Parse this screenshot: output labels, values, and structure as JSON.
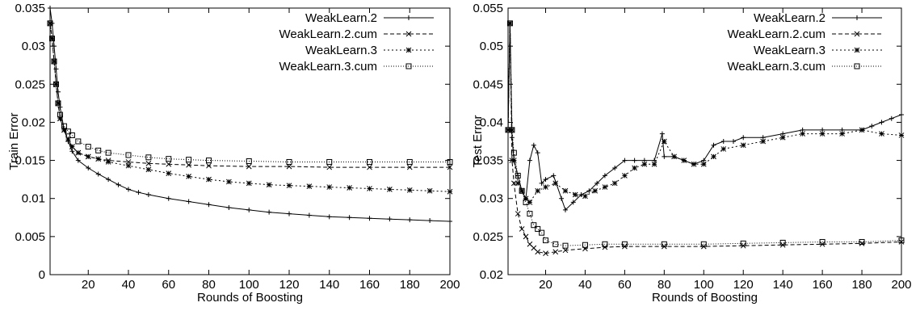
{
  "chart_data": [
    {
      "type": "line",
      "xlabel": "Rounds of Boosting",
      "ylabel": "Train Error",
      "xlim": [
        1,
        200
      ],
      "ylim": [
        0,
        0.035
      ],
      "xticks": [
        20,
        40,
        60,
        80,
        100,
        120,
        140,
        160,
        180,
        200
      ],
      "yticks": [
        0,
        0.005,
        0.01,
        0.015,
        0.02,
        0.025,
        0.03,
        0.035
      ],
      "ytick_labels": [
        "0",
        "0.005",
        "0.01",
        "0.015",
        "0.02",
        "0.025",
        "0.03",
        "0.035"
      ],
      "legend_position": "top-right",
      "series": [
        {
          "name": "WeakLearn.2",
          "marker": "plus",
          "dash": "",
          "points": [
            [
              1,
              0.035
            ],
            [
              2,
              0.033
            ],
            [
              3,
              0.03
            ],
            [
              4,
              0.027
            ],
            [
              5,
              0.024
            ],
            [
              6,
              0.022
            ],
            [
              8,
              0.019
            ],
            [
              10,
              0.0175
            ],
            [
              12,
              0.0162
            ],
            [
              15,
              0.015
            ],
            [
              20,
              0.014
            ],
            [
              25,
              0.0132
            ],
            [
              30,
              0.0125
            ],
            [
              35,
              0.0118
            ],
            [
              40,
              0.0112
            ],
            [
              45,
              0.0108
            ],
            [
              50,
              0.0105
            ],
            [
              60,
              0.01
            ],
            [
              70,
              0.0096
            ],
            [
              80,
              0.0092
            ],
            [
              90,
              0.0088
            ],
            [
              100,
              0.0085
            ],
            [
              110,
              0.0082
            ],
            [
              120,
              0.008
            ],
            [
              130,
              0.0078
            ],
            [
              140,
              0.0076
            ],
            [
              150,
              0.0075
            ],
            [
              160,
              0.0074
            ],
            [
              170,
              0.0073
            ],
            [
              180,
              0.0072
            ],
            [
              190,
              0.0071
            ],
            [
              200,
              0.007
            ]
          ]
        },
        {
          "name": "WeakLearn.2.cum",
          "marker": "cross",
          "dash": "5,3",
          "points": [
            [
              1,
              0.033
            ],
            [
              2,
              0.031
            ],
            [
              3,
              0.028
            ],
            [
              4,
              0.025
            ],
            [
              5,
              0.0225
            ],
            [
              6,
              0.0205
            ],
            [
              8,
              0.019
            ],
            [
              10,
              0.0178
            ],
            [
              12,
              0.0168
            ],
            [
              15,
              0.016
            ],
            [
              20,
              0.0155
            ],
            [
              25,
              0.0152
            ],
            [
              30,
              0.015
            ],
            [
              40,
              0.0148
            ],
            [
              50,
              0.0146
            ],
            [
              60,
              0.0145
            ],
            [
              70,
              0.0144
            ],
            [
              80,
              0.0143
            ],
            [
              100,
              0.0142
            ],
            [
              120,
              0.0142
            ],
            [
              140,
              0.0141
            ],
            [
              160,
              0.0141
            ],
            [
              180,
              0.0141
            ],
            [
              200,
              0.0141
            ]
          ]
        },
        {
          "name": "WeakLearn.3",
          "marker": "star",
          "dash": "2,3",
          "points": [
            [
              1,
              0.033
            ],
            [
              2,
              0.031
            ],
            [
              3,
              0.028
            ],
            [
              4,
              0.025
            ],
            [
              5,
              0.0225
            ],
            [
              6,
              0.0205
            ],
            [
              8,
              0.019
            ],
            [
              10,
              0.0178
            ],
            [
              12,
              0.0168
            ],
            [
              15,
              0.016
            ],
            [
              20,
              0.0155
            ],
            [
              25,
              0.0152
            ],
            [
              30,
              0.0148
            ],
            [
              40,
              0.0143
            ],
            [
              50,
              0.0138
            ],
            [
              60,
              0.0133
            ],
            [
              70,
              0.0129
            ],
            [
              80,
              0.0125
            ],
            [
              90,
              0.0122
            ],
            [
              100,
              0.012
            ],
            [
              110,
              0.0118
            ],
            [
              120,
              0.0117
            ],
            [
              130,
              0.0116
            ],
            [
              140,
              0.0115
            ],
            [
              150,
              0.0114
            ],
            [
              160,
              0.0113
            ],
            [
              170,
              0.0112
            ],
            [
              180,
              0.0111
            ],
            [
              190,
              0.011
            ],
            [
              200,
              0.0109
            ]
          ]
        },
        {
          "name": "WeakLearn.3.cum",
          "marker": "square",
          "dash": "1,2",
          "points": [
            [
              1,
              0.033
            ],
            [
              2,
              0.031
            ],
            [
              3,
              0.028
            ],
            [
              4,
              0.025
            ],
            [
              5,
              0.0225
            ],
            [
              6,
              0.021
            ],
            [
              8,
              0.0195
            ],
            [
              10,
              0.0188
            ],
            [
              12,
              0.0183
            ],
            [
              15,
              0.0175
            ],
            [
              20,
              0.0168
            ],
            [
              25,
              0.0163
            ],
            [
              30,
              0.016
            ],
            [
              40,
              0.0157
            ],
            [
              50,
              0.0154
            ],
            [
              60,
              0.0152
            ],
            [
              70,
              0.0151
            ],
            [
              80,
              0.015
            ],
            [
              100,
              0.0149
            ],
            [
              120,
              0.0148
            ],
            [
              140,
              0.0148
            ],
            [
              160,
              0.0148
            ],
            [
              180,
              0.0148
            ],
            [
              200,
              0.0148
            ]
          ]
        }
      ]
    },
    {
      "type": "line",
      "xlabel": "Rounds of Boosting",
      "ylabel": "Test Error",
      "xlim": [
        1,
        200
      ],
      "ylim": [
        0.02,
        0.055
      ],
      "xticks": [
        20,
        40,
        60,
        80,
        100,
        120,
        140,
        160,
        180,
        200
      ],
      "yticks": [
        0.02,
        0.025,
        0.03,
        0.035,
        0.04,
        0.045,
        0.05,
        0.055
      ],
      "ytick_labels": [
        "0.02",
        "0.025",
        "0.03",
        "0.035",
        "0.04",
        "0.045",
        "0.05",
        "0.055"
      ],
      "legend_position": "top-right",
      "series": [
        {
          "name": "WeakLearn.2",
          "marker": "plus",
          "dash": "",
          "points": [
            [
              1,
              0.039
            ],
            [
              2,
              0.053
            ],
            [
              3,
              0.038
            ],
            [
              4,
              0.035
            ],
            [
              6,
              0.033
            ],
            [
              8,
              0.031
            ],
            [
              10,
              0.03
            ],
            [
              12,
              0.035
            ],
            [
              14,
              0.037
            ],
            [
              16,
              0.036
            ],
            [
              18,
              0.032
            ],
            [
              20,
              0.0325
            ],
            [
              24,
              0.033
            ],
            [
              28,
              0.03
            ],
            [
              30,
              0.0285
            ],
            [
              34,
              0.0295
            ],
            [
              38,
              0.0305
            ],
            [
              42,
              0.031
            ],
            [
              46,
              0.032
            ],
            [
              50,
              0.033
            ],
            [
              55,
              0.034
            ],
            [
              60,
              0.035
            ],
            [
              65,
              0.035
            ],
            [
              70,
              0.035
            ],
            [
              75,
              0.035
            ],
            [
              79,
              0.0385
            ],
            [
              80,
              0.0355
            ],
            [
              85,
              0.0355
            ],
            [
              90,
              0.035
            ],
            [
              95,
              0.0345
            ],
            [
              100,
              0.035
            ],
            [
              105,
              0.037
            ],
            [
              110,
              0.0375
            ],
            [
              115,
              0.0375
            ],
            [
              120,
              0.038
            ],
            [
              130,
              0.038
            ],
            [
              140,
              0.0385
            ],
            [
              150,
              0.039
            ],
            [
              160,
              0.039
            ],
            [
              170,
              0.039
            ],
            [
              180,
              0.039
            ],
            [
              185,
              0.0395
            ],
            [
              190,
              0.04
            ],
            [
              195,
              0.0405
            ],
            [
              200,
              0.041
            ]
          ]
        },
        {
          "name": "WeakLearn.2.cum",
          "marker": "cross",
          "dash": "5,3",
          "points": [
            [
              1,
              0.039
            ],
            [
              2,
              0.053
            ],
            [
              3,
              0.035
            ],
            [
              4,
              0.032
            ],
            [
              6,
              0.028
            ],
            [
              8,
              0.026
            ],
            [
              10,
              0.025
            ],
            [
              12,
              0.024
            ],
            [
              14,
              0.0235
            ],
            [
              16,
              0.023
            ],
            [
              20,
              0.0228
            ],
            [
              25,
              0.023
            ],
            [
              30,
              0.0232
            ],
            [
              40,
              0.0234
            ],
            [
              50,
              0.0236
            ],
            [
              60,
              0.0237
            ],
            [
              80,
              0.0237
            ],
            [
              100,
              0.0237
            ],
            [
              120,
              0.0238
            ],
            [
              140,
              0.0239
            ],
            [
              160,
              0.024
            ],
            [
              180,
              0.0241
            ],
            [
              200,
              0.0243
            ]
          ]
        },
        {
          "name": "WeakLearn.3",
          "marker": "star",
          "dash": "2,3",
          "points": [
            [
              1,
              0.039
            ],
            [
              2,
              0.053
            ],
            [
              3,
              0.039
            ],
            [
              4,
              0.035
            ],
            [
              6,
              0.032
            ],
            [
              8,
              0.031
            ],
            [
              10,
              0.03
            ],
            [
              12,
              0.0295
            ],
            [
              16,
              0.031
            ],
            [
              20,
              0.0315
            ],
            [
              25,
              0.032
            ],
            [
              30,
              0.031
            ],
            [
              35,
              0.0305
            ],
            [
              40,
              0.0303
            ],
            [
              45,
              0.031
            ],
            [
              50,
              0.0315
            ],
            [
              55,
              0.032
            ],
            [
              60,
              0.033
            ],
            [
              65,
              0.034
            ],
            [
              70,
              0.0345
            ],
            [
              75,
              0.0345
            ],
            [
              80,
              0.0375
            ],
            [
              85,
              0.0355
            ],
            [
              90,
              0.035
            ],
            [
              95,
              0.0345
            ],
            [
              100,
              0.0345
            ],
            [
              105,
              0.0355
            ],
            [
              110,
              0.0365
            ],
            [
              120,
              0.037
            ],
            [
              130,
              0.0375
            ],
            [
              140,
              0.038
            ],
            [
              150,
              0.0385
            ],
            [
              160,
              0.0385
            ],
            [
              170,
              0.0385
            ],
            [
              180,
              0.039
            ],
            [
              190,
              0.0385
            ],
            [
              200,
              0.0383
            ]
          ]
        },
        {
          "name": "WeakLearn.3.cum",
          "marker": "square",
          "dash": "1,2",
          "points": [
            [
              1,
              0.039
            ],
            [
              2,
              0.053
            ],
            [
              3,
              0.039
            ],
            [
              4,
              0.036
            ],
            [
              6,
              0.033
            ],
            [
              8,
              0.031
            ],
            [
              10,
              0.0295
            ],
            [
              12,
              0.028
            ],
            [
              14,
              0.0265
            ],
            [
              16,
              0.026
            ],
            [
              18,
              0.0255
            ],
            [
              20,
              0.0245
            ],
            [
              25,
              0.024
            ],
            [
              30,
              0.0238
            ],
            [
              40,
              0.0239
            ],
            [
              50,
              0.024
            ],
            [
              60,
              0.024
            ],
            [
              80,
              0.024
            ],
            [
              100,
              0.024
            ],
            [
              120,
              0.0241
            ],
            [
              140,
              0.0242
            ],
            [
              160,
              0.0243
            ],
            [
              180,
              0.0243
            ],
            [
              200,
              0.0245
            ]
          ]
        }
      ]
    }
  ]
}
